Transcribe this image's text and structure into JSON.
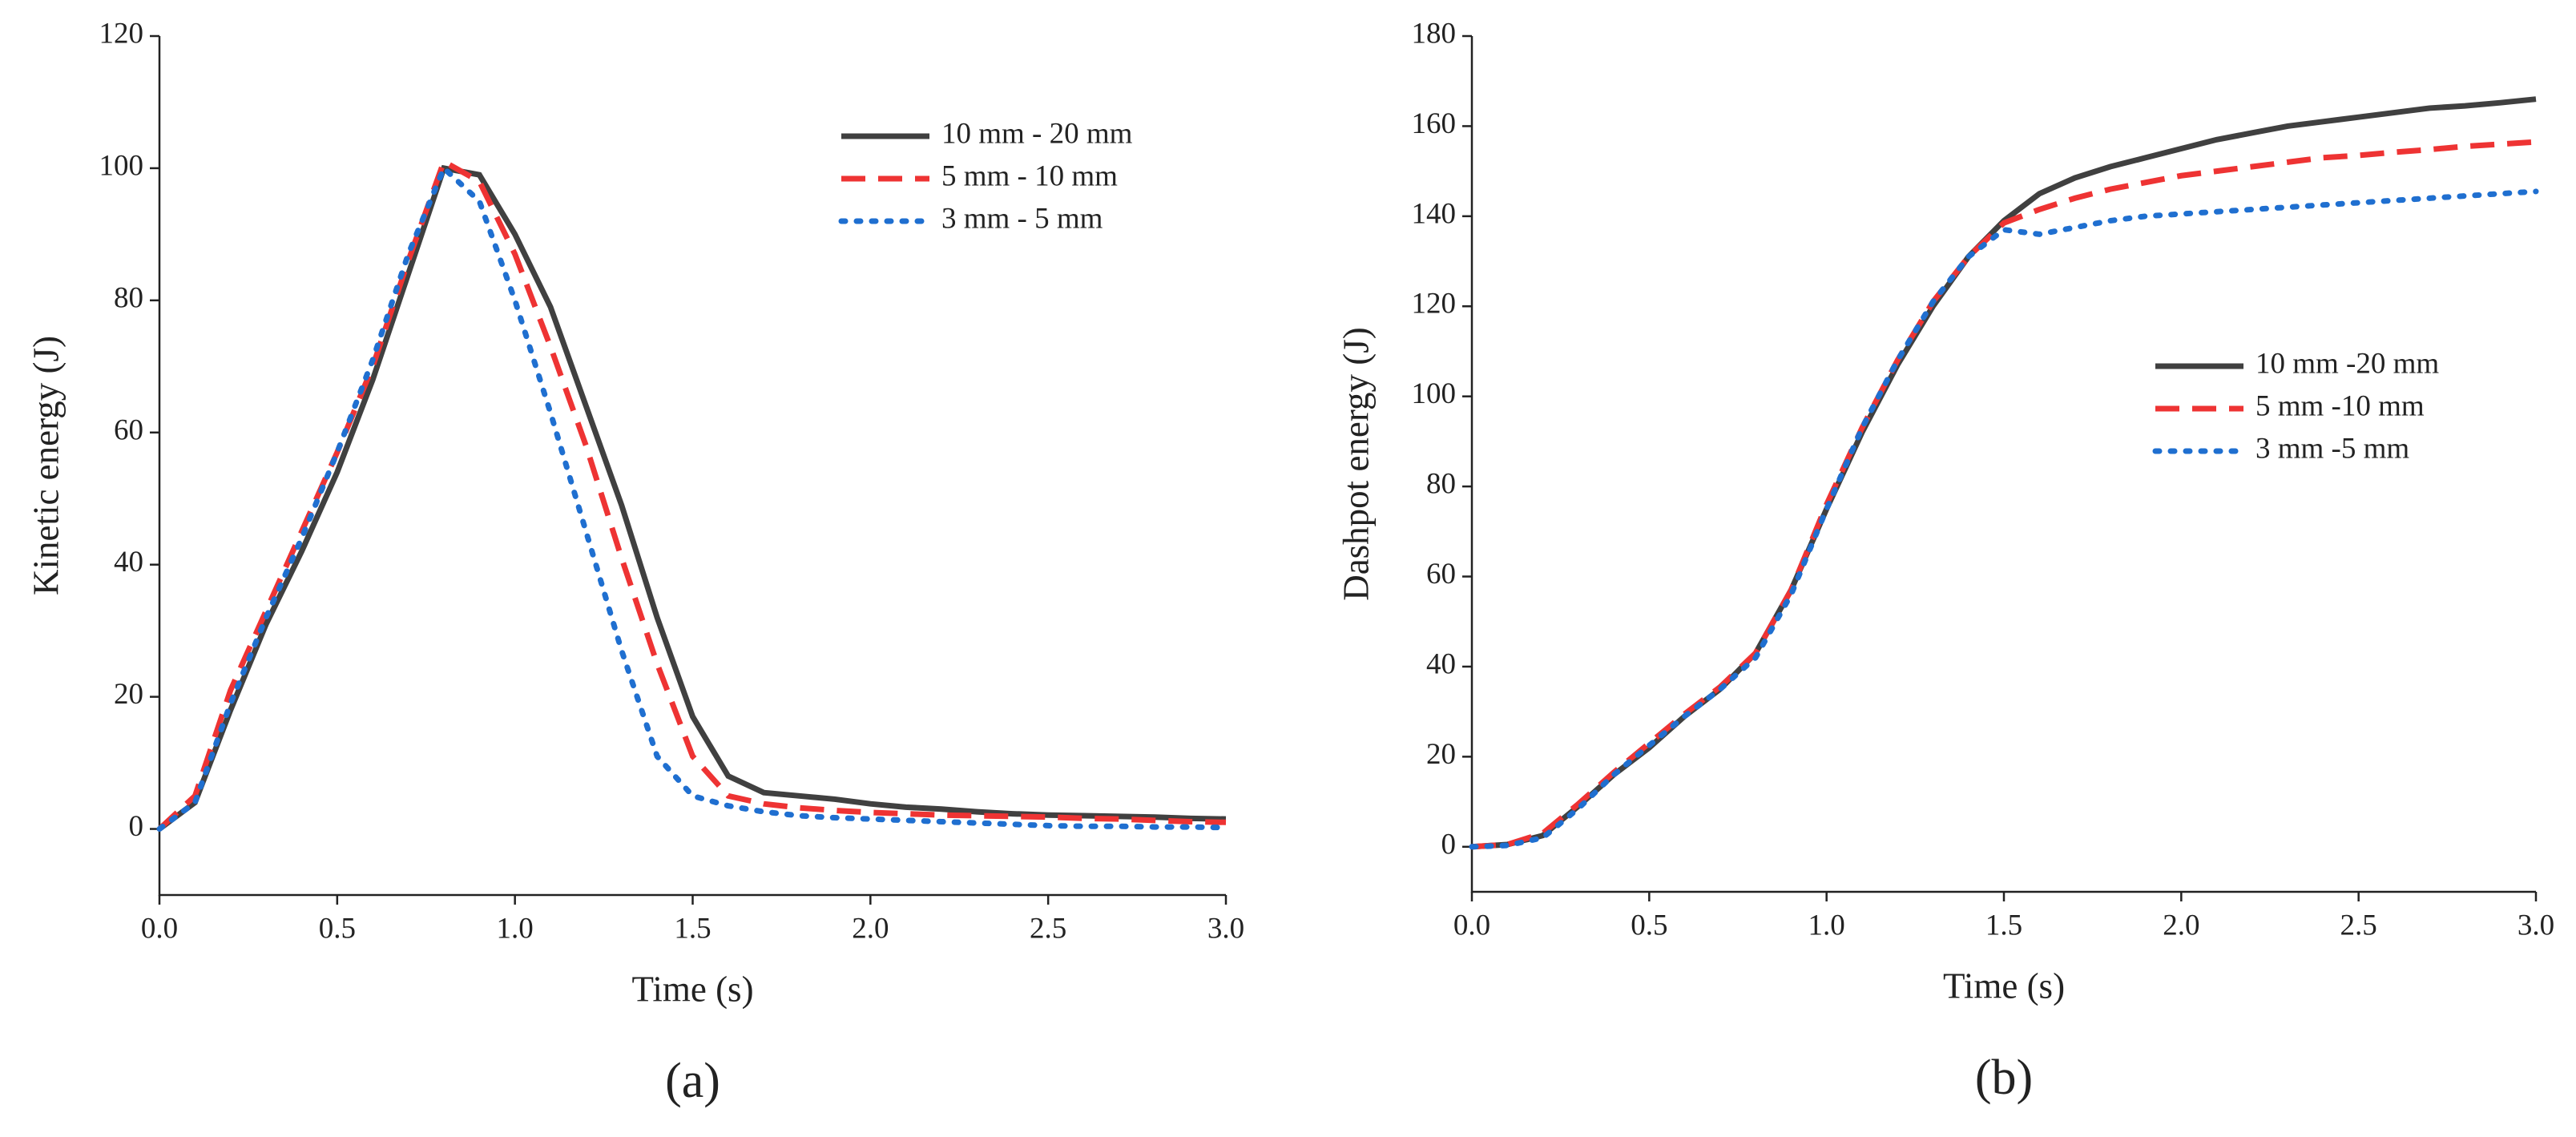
{
  "chart_data": [
    {
      "type": "line",
      "panel_label": "(a)",
      "x_label": "Time (s)",
      "y_label": "Kinetic energy (J)",
      "x": [
        0,
        0.1,
        0.2,
        0.3,
        0.4,
        0.5,
        0.6,
        0.7,
        0.8,
        0.9,
        1.0,
        1.1,
        1.2,
        1.3,
        1.4,
        1.5,
        1.6,
        1.7,
        1.8,
        1.9,
        2.0,
        2.1,
        2.2,
        2.3,
        2.4,
        2.5,
        2.6,
        2.7,
        2.8,
        2.9,
        3.0
      ],
      "xlim": [
        0,
        3
      ],
      "xticks": [
        {
          "value": 0,
          "label": "0.0"
        },
        0.5,
        {
          "value": 1,
          "label": "1.0"
        },
        1.5,
        {
          "value": 2,
          "label": "2.0"
        },
        2.5,
        {
          "value": 3,
          "label": "3.0"
        }
      ],
      "ylim": [
        -10,
        120
      ],
      "yticks": [
        0,
        20,
        40,
        60,
        80,
        100,
        120
      ],
      "legend": "upper right",
      "series": [
        {
          "name": "10 mm - 20 mm",
          "color": "#404040",
          "line_style": "solid",
          "values": [
            0,
            4,
            18,
            31,
            42,
            54,
            68,
            84,
            100,
            99,
            90,
            79,
            64,
            49,
            32,
            17,
            8,
            5.5,
            5,
            4.5,
            3.8,
            3.3,
            3,
            2.6,
            2.3,
            2.1,
            2,
            1.9,
            1.8,
            1.6,
            1.5
          ]
        },
        {
          "name": "5 mm - 10 mm",
          "color": "#ee3333",
          "line_style": "dashed",
          "values": [
            0,
            5,
            21,
            33,
            45,
            57,
            70,
            86,
            101,
            98,
            87,
            73,
            58,
            41,
            25,
            11,
            5,
            3.8,
            3.2,
            2.8,
            2.5,
            2.3,
            2.1,
            2,
            1.9,
            1.8,
            1.6,
            1.5,
            1.3,
            1.1,
            1
          ]
        },
        {
          "name": "3 mm - 5 mm",
          "color": "#1f6fd0",
          "line_style": "dotted",
          "values": [
            0,
            4,
            19,
            32,
            44,
            57,
            71,
            87,
            100,
            95,
            80,
            63,
            45,
            27,
            11,
            5,
            3.5,
            2.6,
            2,
            1.7,
            1.5,
            1.3,
            1.1,
            0.9,
            0.7,
            0.5,
            0.4,
            0.4,
            0.3,
            0.3,
            0.2
          ]
        }
      ]
    },
    {
      "type": "line",
      "panel_label": "(b)",
      "x_label": "Time (s)",
      "y_label": "Dashpot energy (J)",
      "x": [
        0,
        0.1,
        0.2,
        0.3,
        0.4,
        0.5,
        0.6,
        0.7,
        0.8,
        0.9,
        1.0,
        1.1,
        1.2,
        1.3,
        1.4,
        1.5,
        1.6,
        1.7,
        1.8,
        1.9,
        2.0,
        2.1,
        2.2,
        2.3,
        2.4,
        2.5,
        2.6,
        2.7,
        2.8,
        2.9,
        3.0
      ],
      "xlim": [
        0,
        3
      ],
      "xticks": [
        {
          "value": 0,
          "label": "0.0"
        },
        0.5,
        {
          "value": 1,
          "label": "1.0"
        },
        1.5,
        {
          "value": 2,
          "label": "2.0"
        },
        2.5,
        {
          "value": 3,
          "label": "3.0"
        }
      ],
      "ylim": [
        -10,
        180
      ],
      "yticks": [
        0,
        20,
        40,
        60,
        80,
        100,
        120,
        140,
        160,
        180
      ],
      "legend": "center right",
      "series": [
        {
          "name": "10 mm -20 mm",
          "color": "#404040",
          "line_style": "solid",
          "values": [
            0,
            0.5,
            2.5,
            9,
            16,
            22,
            29,
            35,
            43,
            57,
            75,
            92,
            107,
            120,
            131,
            139,
            145,
            148.5,
            151,
            153,
            155,
            157,
            158.5,
            160,
            161,
            162,
            163,
            164,
            164.5,
            165.2,
            166
          ]
        },
        {
          "name": "5 mm -10 mm",
          "color": "#ee3333",
          "line_style": "dashed",
          "values": [
            0,
            0.5,
            3,
            9.5,
            16.5,
            23,
            29.5,
            35.5,
            43,
            57,
            76,
            93,
            108,
            121,
            131,
            138.5,
            141.5,
            144,
            146,
            147.5,
            149,
            150,
            151,
            152,
            153,
            153.5,
            154.2,
            154.8,
            155.5,
            156,
            156.5
          ]
        },
        {
          "name": "3 mm -5 mm",
          "color": "#1f6fd0",
          "line_style": "dotted",
          "values": [
            0,
            0.3,
            2,
            8.5,
            16,
            22.5,
            29,
            35,
            42,
            56,
            75,
            93,
            108,
            121,
            131,
            137,
            136,
            137.5,
            139,
            140,
            140.5,
            141,
            141.5,
            142,
            142.5,
            143,
            143.5,
            144,
            144.5,
            145,
            145.5
          ]
        }
      ]
    }
  ]
}
